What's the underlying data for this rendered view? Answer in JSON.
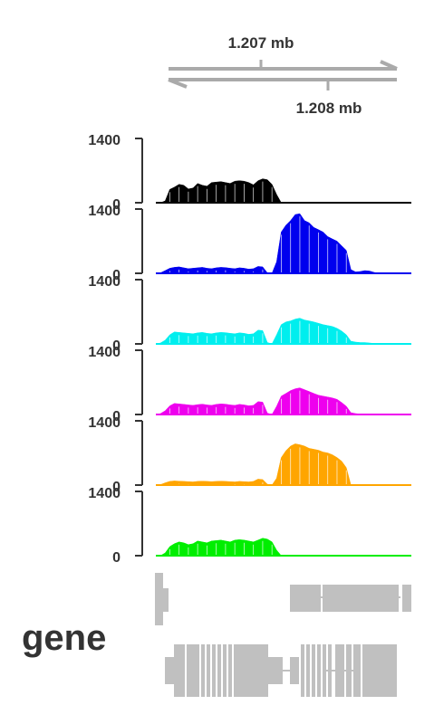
{
  "chart_data": {
    "type": "area",
    "scale_bar": {
      "left_label": "1.207 mb",
      "right_label": "1.208 mb"
    },
    "y_axis": {
      "ylim": [
        0,
        1400
      ],
      "tick_labels": [
        "0",
        "1400"
      ]
    },
    "x_range_bins": 56,
    "tracks": [
      {
        "color": "#000000",
        "profile": [
          0,
          0,
          40,
          290,
          340,
          400,
          380,
          300,
          320,
          420,
          380,
          360,
          440,
          450,
          460,
          440,
          420,
          470,
          480,
          470,
          440,
          390,
          480,
          520,
          500,
          400,
          180,
          0,
          0,
          0,
          0,
          0,
          0,
          0,
          0,
          0,
          0,
          0,
          0,
          0,
          0,
          0,
          0,
          0,
          0,
          0,
          0,
          0,
          0,
          0,
          0,
          0,
          0,
          0,
          0,
          0
        ]
      },
      {
        "color": "#0000ee",
        "profile": [
          0,
          10,
          60,
          110,
          130,
          140,
          120,
          100,
          110,
          120,
          130,
          110,
          100,
          120,
          130,
          125,
          110,
          100,
          120,
          110,
          90,
          100,
          150,
          140,
          10,
          0,
          250,
          900,
          1050,
          1150,
          1280,
          1300,
          1150,
          1100,
          1000,
          950,
          900,
          800,
          750,
          700,
          600,
          500,
          80,
          30,
          40,
          60,
          50,
          20,
          0,
          0,
          0,
          0,
          0,
          0,
          0,
          0
        ]
      },
      {
        "color": "#00eeee",
        "profile": [
          0,
          20,
          80,
          200,
          260,
          250,
          240,
          230,
          220,
          240,
          250,
          230,
          220,
          240,
          250,
          245,
          230,
          220,
          240,
          230,
          210,
          220,
          300,
          290,
          30,
          0,
          200,
          420,
          480,
          500,
          540,
          560,
          520,
          500,
          480,
          450,
          420,
          400,
          380,
          340,
          280,
          200,
          60,
          40,
          30,
          30,
          20,
          10,
          0,
          0,
          0,
          0,
          0,
          0,
          0,
          0
        ]
      },
      {
        "color": "#ee00ee",
        "profile": [
          0,
          20,
          80,
          190,
          240,
          230,
          220,
          210,
          200,
          215,
          225,
          210,
          200,
          220,
          230,
          225,
          210,
          200,
          220,
          210,
          190,
          200,
          280,
          270,
          30,
          0,
          180,
          400,
          460,
          520,
          560,
          580,
          540,
          500,
          460,
          420,
          400,
          380,
          360,
          330,
          260,
          180,
          40,
          20,
          10,
          10,
          5,
          0,
          0,
          0,
          0,
          0,
          0,
          0,
          0,
          0
        ]
      },
      {
        "color": "#ffa500",
        "profile": [
          0,
          10,
          50,
          80,
          90,
          85,
          80,
          75,
          70,
          80,
          85,
          80,
          75,
          80,
          85,
          80,
          75,
          70,
          80,
          75,
          70,
          80,
          130,
          120,
          20,
          0,
          150,
          600,
          750,
          850,
          900,
          880,
          850,
          800,
          780,
          760,
          720,
          700,
          660,
          600,
          520,
          380,
          0,
          0,
          0,
          0,
          0,
          0,
          0,
          0,
          0,
          0,
          0,
          0,
          0,
          0
        ]
      },
      {
        "color": "#00ee00",
        "profile": [
          0,
          0,
          60,
          200,
          260,
          300,
          280,
          240,
          260,
          320,
          300,
          280,
          320,
          330,
          340,
          320,
          300,
          340,
          350,
          340,
          320,
          300,
          340,
          380,
          360,
          300,
          120,
          0,
          0,
          0,
          0,
          0,
          0,
          0,
          0,
          0,
          0,
          0,
          0,
          0,
          0,
          0,
          0,
          0,
          0,
          0,
          0,
          0,
          0,
          0,
          0,
          0,
          0,
          0,
          0,
          0
        ]
      }
    ]
  },
  "gene_track": {
    "label": "gene",
    "color": "#c0c0c0"
  }
}
